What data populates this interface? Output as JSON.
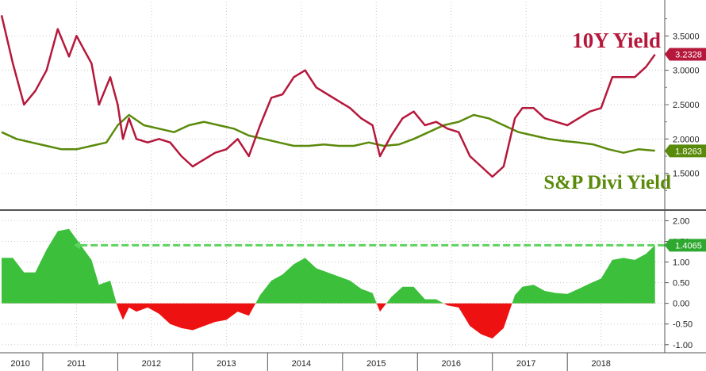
{
  "chart_data": [
    {
      "type": "line",
      "panel": "top",
      "ylim": [
        1.0,
        4.0
      ],
      "y_ticks": [
        "1.5000",
        "2.0000",
        "2.5000",
        "3.0000",
        "3.5000"
      ],
      "y_tick_values": [
        1.5,
        2.0,
        2.5,
        3.0,
        3.5
      ],
      "grid": true,
      "series": [
        {
          "name": "10Y Yield",
          "color": "#b5183b",
          "last_value_label": "3.2328",
          "x": [
            2010.0,
            2010.15,
            2010.3,
            2010.45,
            2010.6,
            2010.75,
            2010.9,
            2011.0,
            2011.1,
            2011.2,
            2011.3,
            2011.45,
            2011.55,
            2011.62,
            2011.7,
            2011.8,
            2011.95,
            2012.1,
            2012.25,
            2012.4,
            2012.55,
            2012.7,
            2012.85,
            2013.0,
            2013.15,
            2013.3,
            2013.45,
            2013.6,
            2013.75,
            2013.9,
            2014.05,
            2014.2,
            2014.35,
            2014.5,
            2014.65,
            2014.8,
            2014.95,
            2015.05,
            2015.2,
            2015.35,
            2015.5,
            2015.65,
            2015.8,
            2015.95,
            2016.1,
            2016.25,
            2016.4,
            2016.55,
            2016.7,
            2016.85,
            2016.95,
            2017.1,
            2017.25,
            2017.4,
            2017.55,
            2017.7,
            2017.85,
            2018.0,
            2018.15,
            2018.3,
            2018.45,
            2018.6,
            2018.72
          ],
          "values": [
            3.8,
            3.1,
            2.5,
            2.7,
            3.0,
            3.6,
            3.2,
            3.5,
            3.3,
            3.1,
            2.5,
            2.9,
            2.5,
            2.0,
            2.3,
            2.0,
            1.95,
            2.0,
            1.95,
            1.75,
            1.6,
            1.7,
            1.8,
            1.85,
            2.0,
            1.75,
            2.2,
            2.6,
            2.65,
            2.9,
            3.0,
            2.75,
            2.65,
            2.55,
            2.45,
            2.3,
            2.2,
            1.75,
            2.05,
            2.3,
            2.4,
            2.2,
            2.25,
            2.15,
            2.1,
            1.75,
            1.6,
            1.45,
            1.6,
            2.3,
            2.45,
            2.45,
            2.3,
            2.25,
            2.2,
            2.3,
            2.4,
            2.45,
            2.9,
            2.9,
            2.9,
            3.05,
            3.23
          ]
        },
        {
          "name": "S&P Divi Yield",
          "color": "#5a8a0a",
          "last_value_label": "1.8263",
          "x": [
            2010.0,
            2010.2,
            2010.4,
            2010.6,
            2010.8,
            2011.0,
            2011.2,
            2011.4,
            2011.55,
            2011.7,
            2011.9,
            2012.1,
            2012.3,
            2012.5,
            2012.7,
            2012.9,
            2013.1,
            2013.3,
            2013.5,
            2013.7,
            2013.9,
            2014.1,
            2014.3,
            2014.5,
            2014.7,
            2014.9,
            2015.1,
            2015.3,
            2015.5,
            2015.7,
            2015.9,
            2016.1,
            2016.3,
            2016.5,
            2016.7,
            2016.9,
            2017.1,
            2017.3,
            2017.5,
            2017.7,
            2017.9,
            2018.1,
            2018.3,
            2018.5,
            2018.72
          ],
          "values": [
            2.1,
            2.0,
            1.95,
            1.9,
            1.85,
            1.85,
            1.9,
            1.95,
            2.2,
            2.35,
            2.2,
            2.15,
            2.1,
            2.2,
            2.25,
            2.2,
            2.15,
            2.05,
            2.0,
            1.95,
            1.9,
            1.9,
            1.92,
            1.9,
            1.9,
            1.95,
            1.9,
            1.92,
            2.0,
            2.1,
            2.2,
            2.25,
            2.35,
            2.3,
            2.2,
            2.1,
            2.05,
            2.0,
            1.97,
            1.95,
            1.92,
            1.85,
            1.8,
            1.85,
            1.83
          ]
        }
      ]
    },
    {
      "type": "area",
      "panel": "bottom",
      "ylim": [
        -1.1,
        2.2
      ],
      "y_ticks": [
        "-1.00",
        "-0.50",
        "0.00",
        "0.50",
        "1.00",
        "1.50",
        "2.00"
      ],
      "y_tick_values": [
        -1.0,
        -0.5,
        0.0,
        0.5,
        1.0,
        1.5,
        2.0
      ],
      "grid": true,
      "positive_color": "#3cc03c",
      "negative_color": "#ee1111",
      "last_value_label": "1.4065",
      "reference_level": 1.4065,
      "series": [
        {
          "x": [
            2010.0,
            2010.15,
            2010.3,
            2010.45,
            2010.6,
            2010.75,
            2010.9,
            2011.0,
            2011.1,
            2011.2,
            2011.3,
            2011.45,
            2011.55,
            2011.62,
            2011.7,
            2011.8,
            2011.95,
            2012.1,
            2012.25,
            2012.4,
            2012.55,
            2012.7,
            2012.85,
            2013.0,
            2013.15,
            2013.3,
            2013.45,
            2013.6,
            2013.75,
            2013.9,
            2014.05,
            2014.2,
            2014.35,
            2014.5,
            2014.65,
            2014.8,
            2014.95,
            2015.05,
            2015.2,
            2015.35,
            2015.5,
            2015.65,
            2015.8,
            2015.95,
            2016.1,
            2016.25,
            2016.4,
            2016.55,
            2016.7,
            2016.85,
            2016.95,
            2017.1,
            2017.25,
            2017.4,
            2017.55,
            2017.7,
            2017.85,
            2018.0,
            2018.15,
            2018.3,
            2018.45,
            2018.6,
            2018.72
          ],
          "values": [
            1.1,
            1.1,
            0.75,
            0.75,
            1.3,
            1.75,
            1.8,
            1.55,
            1.3,
            1.05,
            0.45,
            0.55,
            -0.1,
            -0.4,
            -0.1,
            -0.2,
            -0.1,
            -0.25,
            -0.5,
            -0.6,
            -0.65,
            -0.55,
            -0.45,
            -0.4,
            -0.2,
            -0.3,
            0.2,
            0.55,
            0.7,
            0.95,
            1.1,
            0.85,
            0.75,
            0.65,
            0.55,
            0.35,
            0.25,
            -0.2,
            0.15,
            0.4,
            0.4,
            0.1,
            0.1,
            -0.05,
            -0.1,
            -0.55,
            -0.75,
            -0.85,
            -0.6,
            0.2,
            0.4,
            0.45,
            0.3,
            0.25,
            0.23,
            0.35,
            0.48,
            0.6,
            1.05,
            1.1,
            1.05,
            1.2,
            1.41
          ]
        }
      ]
    }
  ],
  "x_axis": {
    "xlim": [
      2010.0,
      2018.85
    ],
    "ticks": [
      "2010",
      "2011",
      "2012",
      "2013",
      "2014",
      "2015",
      "2016",
      "2017",
      "2018"
    ],
    "tick_values": [
      2010.25,
      2011.0,
      2012.0,
      2013.0,
      2014.0,
      2015.0,
      2016.0,
      2017.0,
      2018.0
    ],
    "year_boundaries": [
      2010.55,
      2011.55,
      2012.55,
      2013.55,
      2014.55,
      2015.55,
      2016.55,
      2017.55
    ]
  },
  "annotations": {
    "ten_year": "10Y Yield",
    "divi": "S&P Divi Yield"
  }
}
